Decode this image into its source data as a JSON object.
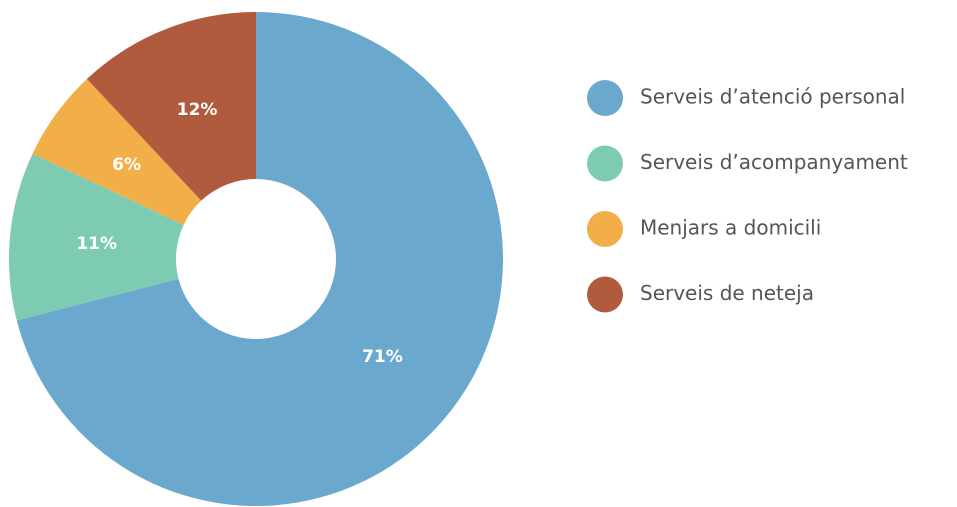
{
  "chart_data": {
    "type": "donut",
    "categories": [
      "Serveis d’atenció personal",
      "Serveis d’acompanyament",
      "Menjars a domicili",
      "Serveis de neteja"
    ],
    "values": [
      71,
      11,
      6,
      12
    ],
    "value_labels": [
      "71%",
      "11%",
      "6%",
      "12%"
    ],
    "colors": [
      "#6ba8cd",
      "#7ecbb4",
      "#f2ae48",
      "#b05b3e"
    ],
    "legend": "right"
  }
}
